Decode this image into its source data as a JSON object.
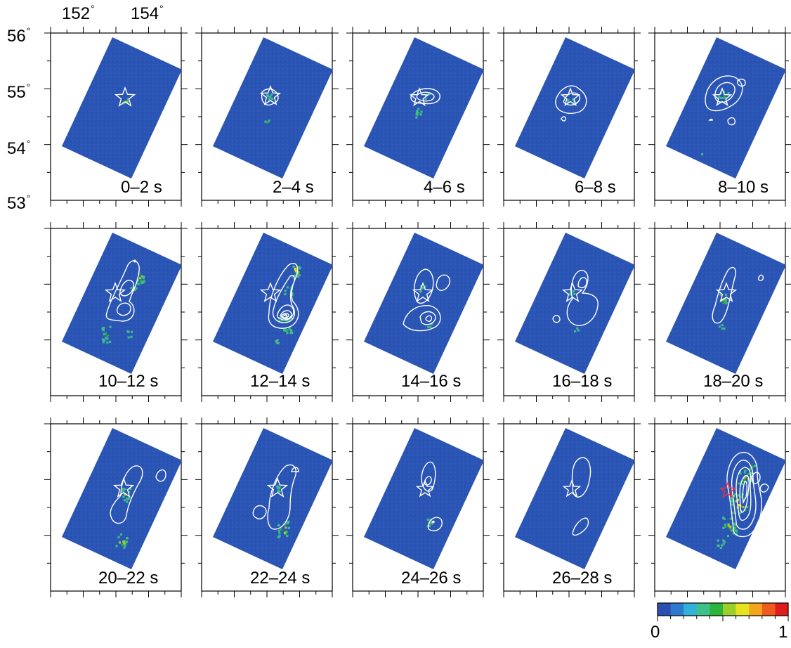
{
  "figure": {
    "lon_ticks": [
      "152",
      "154"
    ],
    "lat_ticks": [
      "56",
      "55",
      "54",
      "53"
    ],
    "degree_symbol": "°",
    "panel_labels": [
      "0–2 s",
      "2–4 s",
      "4–6 s",
      "6–8 s",
      "8–10 s",
      "10–12 s",
      "12–14 s",
      "14–16 s",
      "16–18 s",
      "18–20 s",
      "20–22 s",
      "22–24 s",
      "24–26 s",
      "26–28 s",
      ""
    ],
    "colorbar": {
      "min_label": "0",
      "max_label": "1"
    }
  },
  "colors": {
    "background": "#2b55b4",
    "contour": "#ffffff",
    "epicenter_star": "#ffffff",
    "cumulative_star": "#ff3030",
    "colormap": [
      "#2a4fb0",
      "#2f79cf",
      "#32b2d8",
      "#3fbf8a",
      "#2db43c",
      "#9bcf2a",
      "#e7e21e",
      "#f3a51c",
      "#ef5b1e",
      "#e01c1c"
    ]
  }
}
